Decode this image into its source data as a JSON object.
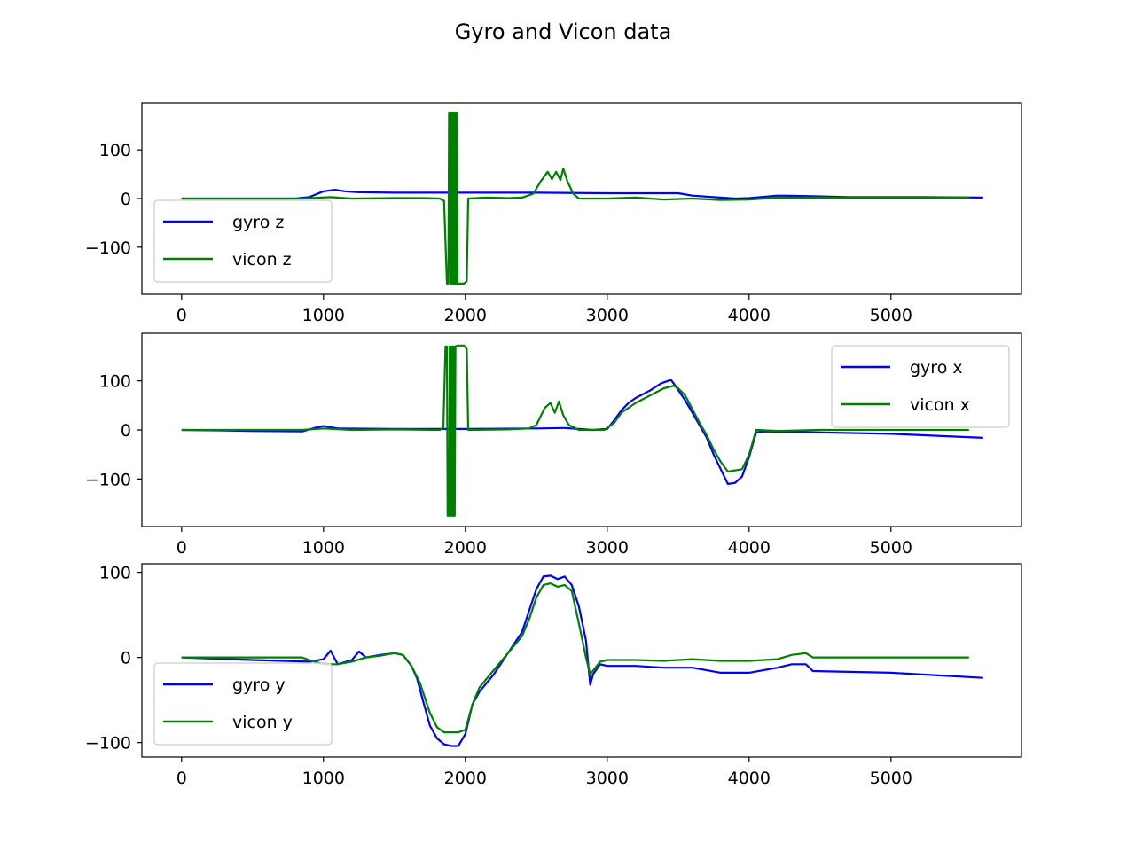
{
  "figure": {
    "title": "Gyro and Vicon data"
  },
  "chart_data": [
    {
      "type": "line",
      "title": "",
      "xlabel": "",
      "ylabel": "",
      "xlim": [
        -280,
        5920
      ],
      "ylim": [
        -197,
        197
      ],
      "xticks": [
        0,
        1000,
        2000,
        3000,
        4000,
        5000
      ],
      "yticks": [
        -100,
        0,
        100
      ],
      "legend": "lower-left",
      "grid": false,
      "series": [
        {
          "name": "gyro z",
          "color": "#0000ff",
          "points": [
            [
              0,
              0
            ],
            [
              800,
              0
            ],
            [
              900,
              3
            ],
            [
              1000,
              15
            ],
            [
              1080,
              18
            ],
            [
              1150,
              15
            ],
            [
              1250,
              13
            ],
            [
              1500,
              12
            ],
            [
              2000,
              12
            ],
            [
              2500,
              12
            ],
            [
              3000,
              11
            ],
            [
              3500,
              11
            ],
            [
              3600,
              6
            ],
            [
              3750,
              3
            ],
            [
              3900,
              0
            ],
            [
              4000,
              1
            ],
            [
              4200,
              6
            ],
            [
              4450,
              5
            ],
            [
              4700,
              3
            ],
            [
              5200,
              3
            ],
            [
              5650,
              2
            ]
          ]
        },
        {
          "name": "vicon z",
          "color": "#008000",
          "points": [
            [
              0,
              0
            ],
            [
              850,
              0
            ],
            [
              1050,
              3
            ],
            [
              1200,
              0
            ],
            [
              1500,
              1
            ],
            [
              1700,
              1
            ],
            [
              1820,
              0
            ],
            [
              1850,
              -5
            ],
            [
              1870,
              -175
            ],
            [
              1880,
              -175
            ],
            [
              1885,
              177
            ],
            [
              1890,
              177
            ],
            [
              1895,
              -175
            ],
            [
              1900,
              177
            ],
            [
              1905,
              -175
            ],
            [
              1910,
              177
            ],
            [
              1915,
              -175
            ],
            [
              1920,
              177
            ],
            [
              1925,
              -175
            ],
            [
              1930,
              177
            ],
            [
              1935,
              -175
            ],
            [
              1940,
              177
            ],
            [
              1945,
              -175
            ],
            [
              1950,
              -175
            ],
            [
              1990,
              -175
            ],
            [
              2010,
              -170
            ],
            [
              2020,
              0
            ],
            [
              2150,
              2
            ],
            [
              2300,
              1
            ],
            [
              2400,
              2
            ],
            [
              2480,
              10
            ],
            [
              2530,
              35
            ],
            [
              2580,
              55
            ],
            [
              2610,
              40
            ],
            [
              2640,
              55
            ],
            [
              2670,
              38
            ],
            [
              2690,
              62
            ],
            [
              2720,
              35
            ],
            [
              2760,
              10
            ],
            [
              2800,
              0
            ],
            [
              3000,
              0
            ],
            [
              3200,
              2
            ],
            [
              3400,
              -2
            ],
            [
              3600,
              0
            ],
            [
              3800,
              -3
            ],
            [
              4000,
              -2
            ],
            [
              4200,
              2
            ],
            [
              4500,
              2
            ],
            [
              5000,
              2
            ],
            [
              5550,
              2
            ]
          ]
        }
      ]
    },
    {
      "type": "line",
      "title": "",
      "xlabel": "",
      "ylabel": "",
      "xlim": [
        -280,
        5920
      ],
      "ylim": [
        -197,
        197
      ],
      "xticks": [
        0,
        1000,
        2000,
        3000,
        4000,
        5000
      ],
      "yticks": [
        -100,
        0,
        100
      ],
      "legend": "upper-right",
      "grid": false,
      "series": [
        {
          "name": "gyro x",
          "color": "#0000ff",
          "points": [
            [
              0,
              0
            ],
            [
              500,
              -2
            ],
            [
              850,
              -3
            ],
            [
              950,
              5
            ],
            [
              1000,
              8
            ],
            [
              1100,
              3
            ],
            [
              1500,
              2
            ],
            [
              2000,
              2
            ],
            [
              2500,
              3
            ],
            [
              2700,
              4
            ],
            [
              2800,
              2
            ],
            [
              2900,
              0
            ],
            [
              3000,
              2
            ],
            [
              3050,
              20
            ],
            [
              3100,
              40
            ],
            [
              3150,
              55
            ],
            [
              3200,
              65
            ],
            [
              3300,
              80
            ],
            [
              3380,
              95
            ],
            [
              3450,
              102
            ],
            [
              3480,
              90
            ],
            [
              3550,
              60
            ],
            [
              3600,
              35
            ],
            [
              3650,
              10
            ],
            [
              3700,
              -15
            ],
            [
              3750,
              -50
            ],
            [
              3800,
              -80
            ],
            [
              3850,
              -110
            ],
            [
              3900,
              -108
            ],
            [
              3950,
              -95
            ],
            [
              4000,
              -55
            ],
            [
              4050,
              -5
            ],
            [
              4100,
              -3
            ],
            [
              4500,
              -5
            ],
            [
              5000,
              -8
            ],
            [
              5650,
              -16
            ]
          ]
        },
        {
          "name": "vicon x",
          "color": "#008000",
          "points": [
            [
              0,
              0
            ],
            [
              850,
              0
            ],
            [
              1000,
              3
            ],
            [
              1200,
              0
            ],
            [
              1500,
              1
            ],
            [
              1820,
              0
            ],
            [
              1845,
              5
            ],
            [
              1860,
              170
            ],
            [
              1870,
              170
            ],
            [
              1875,
              -175
            ],
            [
              1885,
              -175
            ],
            [
              1890,
              170
            ],
            [
              1895,
              -175
            ],
            [
              1900,
              170
            ],
            [
              1905,
              -175
            ],
            [
              1910,
              170
            ],
            [
              1915,
              -175
            ],
            [
              1920,
              170
            ],
            [
              1925,
              -175
            ],
            [
              1930,
              170
            ],
            [
              1945,
              172
            ],
            [
              1990,
              172
            ],
            [
              2010,
              165
            ],
            [
              2020,
              0
            ],
            [
              2300,
              1
            ],
            [
              2450,
              3
            ],
            [
              2500,
              10
            ],
            [
              2560,
              45
            ],
            [
              2600,
              55
            ],
            [
              2630,
              35
            ],
            [
              2660,
              58
            ],
            [
              2690,
              30
            ],
            [
              2730,
              10
            ],
            [
              2800,
              0
            ],
            [
              2980,
              0
            ],
            [
              3050,
              15
            ],
            [
              3100,
              35
            ],
            [
              3200,
              55
            ],
            [
              3300,
              70
            ],
            [
              3400,
              85
            ],
            [
              3470,
              90
            ],
            [
              3500,
              85
            ],
            [
              3550,
              70
            ],
            [
              3650,
              15
            ],
            [
              3700,
              -10
            ],
            [
              3750,
              -40
            ],
            [
              3800,
              -65
            ],
            [
              3850,
              -85
            ],
            [
              3950,
              -80
            ],
            [
              4000,
              -50
            ],
            [
              4050,
              0
            ],
            [
              4200,
              -2
            ],
            [
              4500,
              0
            ],
            [
              5000,
              0
            ],
            [
              5550,
              0
            ]
          ]
        }
      ]
    },
    {
      "type": "line",
      "title": "",
      "xlabel": "",
      "ylabel": "",
      "xlim": [
        -280,
        5920
      ],
      "ylim": [
        -117,
        110
      ],
      "xticks": [
        0,
        1000,
        2000,
        3000,
        4000,
        5000
      ],
      "yticks": [
        -100,
        0,
        100
      ],
      "legend": "lower-left",
      "grid": false,
      "series": [
        {
          "name": "gyro y",
          "color": "#0000ff",
          "points": [
            [
              0,
              0
            ],
            [
              500,
              -3
            ],
            [
              900,
              -5
            ],
            [
              1000,
              -2
            ],
            [
              1050,
              8
            ],
            [
              1100,
              -8
            ],
            [
              1200,
              -3
            ],
            [
              1250,
              7
            ],
            [
              1300,
              0
            ],
            [
              1400,
              3
            ],
            [
              1500,
              5
            ],
            [
              1560,
              3
            ],
            [
              1620,
              -10
            ],
            [
              1660,
              -25
            ],
            [
              1700,
              -50
            ],
            [
              1750,
              -80
            ],
            [
              1800,
              -95
            ],
            [
              1850,
              -102
            ],
            [
              1900,
              -104
            ],
            [
              1950,
              -104
            ],
            [
              2000,
              -90
            ],
            [
              2050,
              -55
            ],
            [
              2100,
              -40
            ],
            [
              2200,
              -20
            ],
            [
              2300,
              5
            ],
            [
              2400,
              30
            ],
            [
              2450,
              55
            ],
            [
              2500,
              80
            ],
            [
              2550,
              95
            ],
            [
              2600,
              96
            ],
            [
              2650,
              92
            ],
            [
              2700,
              95
            ],
            [
              2750,
              85
            ],
            [
              2800,
              60
            ],
            [
              2850,
              20
            ],
            [
              2880,
              -32
            ],
            [
              2900,
              -20
            ],
            [
              2950,
              -8
            ],
            [
              3000,
              -10
            ],
            [
              3200,
              -10
            ],
            [
              3400,
              -12
            ],
            [
              3600,
              -12
            ],
            [
              3800,
              -18
            ],
            [
              4000,
              -18
            ],
            [
              4200,
              -12
            ],
            [
              4300,
              -8
            ],
            [
              4400,
              -8
            ],
            [
              4450,
              -16
            ],
            [
              5000,
              -18
            ],
            [
              5650,
              -24
            ]
          ]
        },
        {
          "name": "vicon y",
          "color": "#008000",
          "points": [
            [
              0,
              0
            ],
            [
              500,
              0
            ],
            [
              850,
              0
            ],
            [
              900,
              -3
            ],
            [
              1000,
              -8
            ],
            [
              1100,
              -8
            ],
            [
              1200,
              -5
            ],
            [
              1300,
              0
            ],
            [
              1400,
              2
            ],
            [
              1500,
              5
            ],
            [
              1560,
              3
            ],
            [
              1620,
              -10
            ],
            [
              1680,
              -30
            ],
            [
              1750,
              -65
            ],
            [
              1800,
              -82
            ],
            [
              1850,
              -88
            ],
            [
              1950,
              -88
            ],
            [
              2000,
              -85
            ],
            [
              2050,
              -55
            ],
            [
              2100,
              -35
            ],
            [
              2200,
              -15
            ],
            [
              2300,
              5
            ],
            [
              2400,
              25
            ],
            [
              2450,
              45
            ],
            [
              2500,
              70
            ],
            [
              2550,
              85
            ],
            [
              2600,
              87
            ],
            [
              2650,
              83
            ],
            [
              2700,
              85
            ],
            [
              2750,
              78
            ],
            [
              2800,
              40
            ],
            [
              2850,
              0
            ],
            [
              2880,
              -20
            ],
            [
              2950,
              -5
            ],
            [
              3000,
              -3
            ],
            [
              3200,
              -3
            ],
            [
              3400,
              -4
            ],
            [
              3600,
              -2
            ],
            [
              3800,
              -4
            ],
            [
              4000,
              -4
            ],
            [
              4200,
              -2
            ],
            [
              4300,
              3
            ],
            [
              4400,
              5
            ],
            [
              4450,
              0
            ],
            [
              5000,
              0
            ],
            [
              5550,
              0
            ]
          ]
        }
      ]
    }
  ]
}
